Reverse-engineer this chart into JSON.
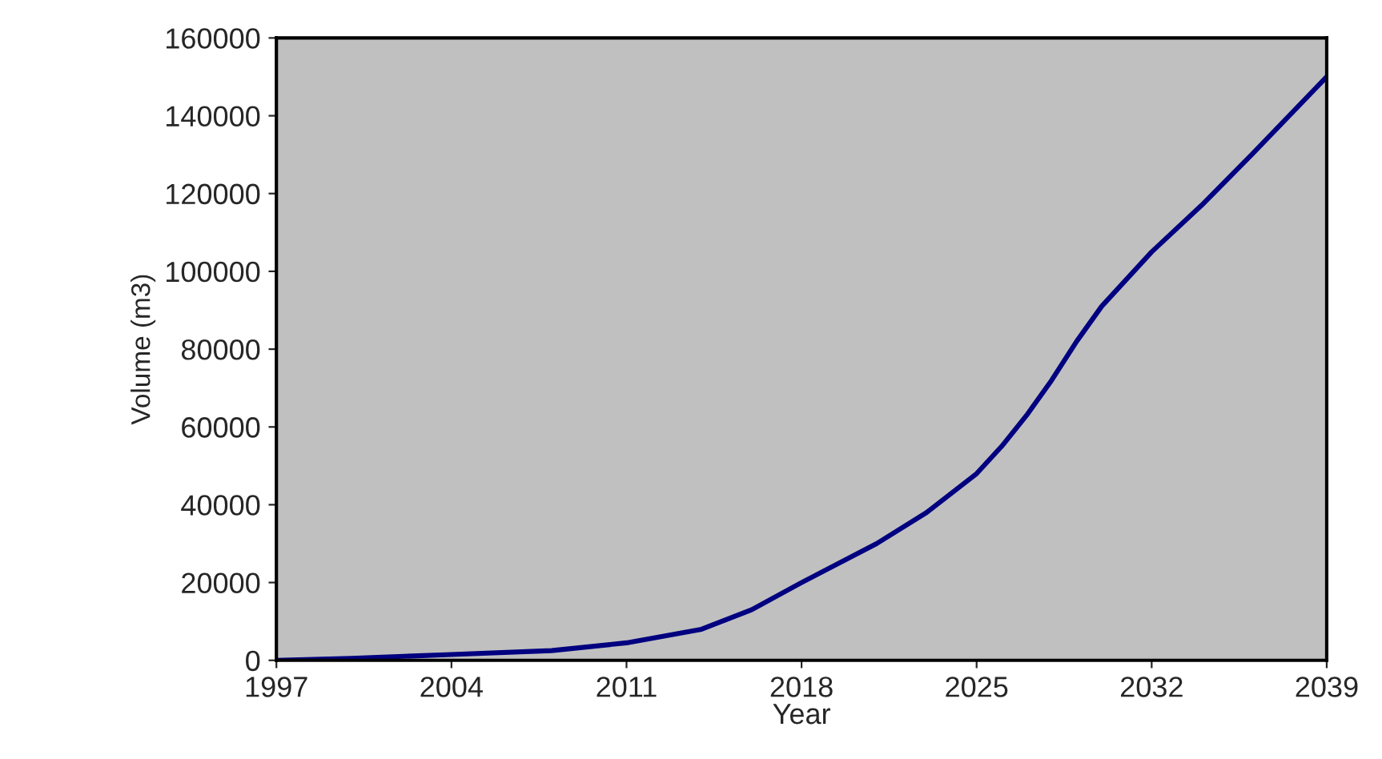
{
  "chart_data": {
    "type": "line",
    "xlabel": "Year",
    "ylabel": "Volume (m3)",
    "series": [
      {
        "color": "#000080",
        "x": [
          1997,
          2000,
          2004,
          2008,
          2011,
          2014,
          2016,
          2018,
          2021,
          2023,
          2025,
          2026,
          2027,
          2028,
          2029,
          2030,
          2031,
          2032,
          2034,
          2036,
          2039
        ],
        "values": [
          0,
          500,
          1500,
          2500,
          4500,
          8000,
          13000,
          20000,
          30000,
          38000,
          48000,
          55000,
          63000,
          72000,
          82000,
          91000,
          98000,
          105000,
          117000,
          130000,
          150000
        ]
      }
    ],
    "xlim": [
      1997,
      2039
    ],
    "xticks": [
      1997,
      2004,
      2011,
      2018,
      2025,
      2032,
      2039
    ],
    "ylim": [
      0,
      160000
    ],
    "yticks": [
      0,
      20000,
      40000,
      60000,
      80000,
      100000,
      120000,
      140000,
      160000
    ],
    "grid": false,
    "legend": false,
    "marker": "none",
    "line_style": "solid"
  }
}
